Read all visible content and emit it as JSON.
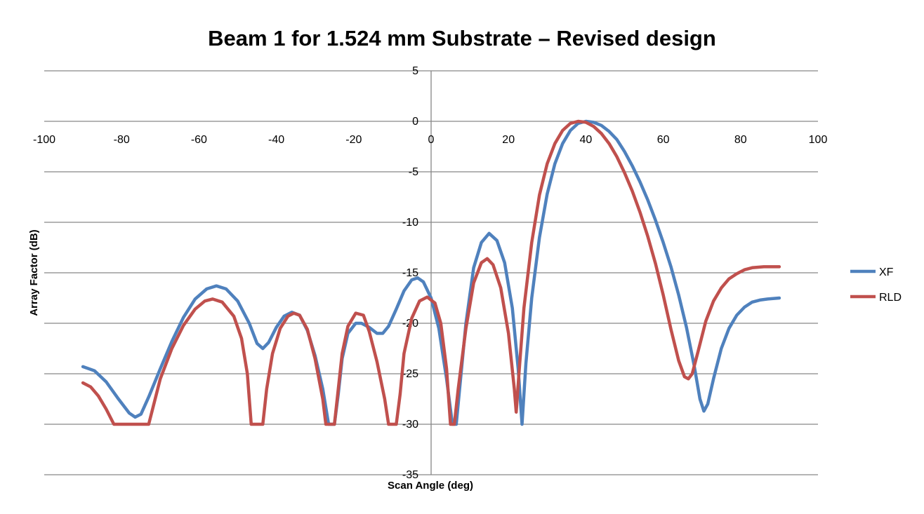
{
  "chart_data": {
    "type": "line",
    "title": "Beam 1 for 1.524 mm Substrate – Revised design",
    "xlabel": "Scan Angle (deg)",
    "ylabel": "Array Factor (dB)",
    "xlim": [
      -100,
      100
    ],
    "ylim": [
      -35,
      5
    ],
    "x_ticks": [
      -100,
      -80,
      -60,
      -40,
      -20,
      0,
      20,
      40,
      60,
      80,
      100
    ],
    "y_ticks": [
      5,
      0,
      -5,
      -10,
      -15,
      -20,
      -25,
      -30,
      -35
    ],
    "grid": "horizontal",
    "legend_position": "right",
    "series": [
      {
        "name": "XF",
        "color": "#4f81bd",
        "points": [
          [
            -90,
            -24.3
          ],
          [
            -87,
            -24.7
          ],
          [
            -84,
            -25.8
          ],
          [
            -81,
            -27.4
          ],
          [
            -78,
            -28.9
          ],
          [
            -76.5,
            -29.3
          ],
          [
            -75,
            -29.0
          ],
          [
            -73,
            -27.3
          ],
          [
            -70,
            -24.5
          ],
          [
            -67,
            -21.8
          ],
          [
            -64,
            -19.4
          ],
          [
            -61,
            -17.6
          ],
          [
            -58,
            -16.6
          ],
          [
            -55.5,
            -16.3
          ],
          [
            -53,
            -16.6
          ],
          [
            -50,
            -17.8
          ],
          [
            -47,
            -20.0
          ],
          [
            -45,
            -22.0
          ],
          [
            -43.5,
            -22.5
          ],
          [
            -42,
            -21.9
          ],
          [
            -40,
            -20.4
          ],
          [
            -38,
            -19.3
          ],
          [
            -36,
            -18.9
          ],
          [
            -34,
            -19.2
          ],
          [
            -32,
            -20.7
          ],
          [
            -30,
            -23.2
          ],
          [
            -28,
            -26.5
          ],
          [
            -26.5,
            -30
          ],
          [
            -25,
            -30
          ],
          [
            -24,
            -27.0
          ],
          [
            -23,
            -23.5
          ],
          [
            -21.5,
            -21.0
          ],
          [
            -19.5,
            -20.0
          ],
          [
            -18,
            -20.0
          ],
          [
            -16,
            -20.4
          ],
          [
            -14,
            -21.0
          ],
          [
            -12.5,
            -21.0
          ],
          [
            -11,
            -20.3
          ],
          [
            -9,
            -18.6
          ],
          [
            -7,
            -16.8
          ],
          [
            -5,
            -15.7
          ],
          [
            -3.5,
            -15.5
          ],
          [
            -2,
            -15.9
          ],
          [
            0,
            -17.5
          ],
          [
            2,
            -20.5
          ],
          [
            4,
            -25.5
          ],
          [
            5.5,
            -30
          ],
          [
            6.5,
            -30
          ],
          [
            7.5,
            -26.0
          ],
          [
            9,
            -20.0
          ],
          [
            11,
            -14.5
          ],
          [
            13,
            -12.0
          ],
          [
            15,
            -11.1
          ],
          [
            17,
            -11.8
          ],
          [
            19,
            -14.0
          ],
          [
            21,
            -18.5
          ],
          [
            22.5,
            -24.5
          ],
          [
            23.5,
            -30
          ],
          [
            24.5,
            -24.0
          ],
          [
            26,
            -17.5
          ],
          [
            28,
            -11.5
          ],
          [
            30,
            -7.2
          ],
          [
            32,
            -4.2
          ],
          [
            34,
            -2.2
          ],
          [
            36,
            -0.9
          ],
          [
            38,
            -0.2
          ],
          [
            40,
            0.0
          ],
          [
            42,
            -0.1
          ],
          [
            44,
            -0.4
          ],
          [
            46,
            -1.0
          ],
          [
            48,
            -1.8
          ],
          [
            50,
            -3.0
          ],
          [
            52,
            -4.4
          ],
          [
            54,
            -6.0
          ],
          [
            56,
            -7.8
          ],
          [
            58,
            -9.8
          ],
          [
            60,
            -12.0
          ],
          [
            62,
            -14.4
          ],
          [
            64,
            -17.2
          ],
          [
            66,
            -20.4
          ],
          [
            68,
            -24.2
          ],
          [
            69.5,
            -27.5
          ],
          [
            70.5,
            -28.7
          ],
          [
            71.5,
            -28.0
          ],
          [
            73,
            -25.5
          ],
          [
            75,
            -22.5
          ],
          [
            77,
            -20.5
          ],
          [
            79,
            -19.2
          ],
          [
            81,
            -18.4
          ],
          [
            83,
            -17.9
          ],
          [
            85,
            -17.7
          ],
          [
            87,
            -17.6
          ],
          [
            90,
            -17.5
          ]
        ]
      },
      {
        "name": "RLD",
        "color": "#c0504d",
        "points": [
          [
            -90,
            -25.9
          ],
          [
            -88,
            -26.3
          ],
          [
            -86,
            -27.2
          ],
          [
            -84,
            -28.5
          ],
          [
            -82,
            -30
          ],
          [
            -80,
            -30
          ],
          [
            -76,
            -30
          ],
          [
            -73,
            -30
          ],
          [
            -72,
            -28.5
          ],
          [
            -70,
            -25.5
          ],
          [
            -67,
            -22.5
          ],
          [
            -64,
            -20.2
          ],
          [
            -61,
            -18.6
          ],
          [
            -58.5,
            -17.8
          ],
          [
            -56.5,
            -17.6
          ],
          [
            -54,
            -17.9
          ],
          [
            -51,
            -19.3
          ],
          [
            -49,
            -21.5
          ],
          [
            -47.5,
            -25.0
          ],
          [
            -46.5,
            -30
          ],
          [
            -43.5,
            -30
          ],
          [
            -42.5,
            -26.5
          ],
          [
            -41,
            -23.0
          ],
          [
            -39,
            -20.5
          ],
          [
            -37,
            -19.3
          ],
          [
            -35.5,
            -19.0
          ],
          [
            -34,
            -19.2
          ],
          [
            -32,
            -20.6
          ],
          [
            -30,
            -23.5
          ],
          [
            -28,
            -27.5
          ],
          [
            -27.2,
            -30
          ],
          [
            -25,
            -30
          ],
          [
            -24,
            -26.5
          ],
          [
            -23,
            -23.0
          ],
          [
            -21.5,
            -20.3
          ],
          [
            -19.5,
            -19.0
          ],
          [
            -17.5,
            -19.2
          ],
          [
            -16,
            -20.8
          ],
          [
            -14,
            -23.8
          ],
          [
            -12,
            -27.5
          ],
          [
            -11,
            -30
          ],
          [
            -9,
            -30
          ],
          [
            -8,
            -27.0
          ],
          [
            -7,
            -23.0
          ],
          [
            -5,
            -19.5
          ],
          [
            -3,
            -17.8
          ],
          [
            -1,
            -17.4
          ],
          [
            1,
            -18.0
          ],
          [
            2.5,
            -20.0
          ],
          [
            4,
            -24.5
          ],
          [
            5,
            -30
          ],
          [
            6,
            -30
          ],
          [
            7,
            -26.5
          ],
          [
            9,
            -20.5
          ],
          [
            11,
            -16.0
          ],
          [
            13,
            -14.0
          ],
          [
            14.5,
            -13.6
          ],
          [
            16,
            -14.2
          ],
          [
            18,
            -16.5
          ],
          [
            20,
            -21.0
          ],
          [
            21.5,
            -26.5
          ],
          [
            22,
            -28.8
          ],
          [
            22.7,
            -25.0
          ],
          [
            24,
            -18.5
          ],
          [
            26,
            -12.0
          ],
          [
            28,
            -7.3
          ],
          [
            30,
            -4.2
          ],
          [
            32,
            -2.2
          ],
          [
            34,
            -0.9
          ],
          [
            36,
            -0.2
          ],
          [
            38,
            0.0
          ],
          [
            40,
            -0.1
          ],
          [
            42,
            -0.5
          ],
          [
            44,
            -1.2
          ],
          [
            46,
            -2.2
          ],
          [
            48,
            -3.5
          ],
          [
            50,
            -5.1
          ],
          [
            52,
            -6.9
          ],
          [
            54,
            -9.0
          ],
          [
            56,
            -11.4
          ],
          [
            58,
            -14.1
          ],
          [
            60,
            -17.2
          ],
          [
            62,
            -20.6
          ],
          [
            64,
            -23.7
          ],
          [
            65.5,
            -25.3
          ],
          [
            66.5,
            -25.5
          ],
          [
            67.5,
            -25.0
          ],
          [
            69,
            -22.8
          ],
          [
            71,
            -19.8
          ],
          [
            73,
            -17.8
          ],
          [
            75,
            -16.5
          ],
          [
            77,
            -15.6
          ],
          [
            79,
            -15.1
          ],
          [
            81,
            -14.7
          ],
          [
            83,
            -14.5
          ],
          [
            86,
            -14.4
          ],
          [
            90,
            -14.4
          ]
        ]
      }
    ]
  }
}
